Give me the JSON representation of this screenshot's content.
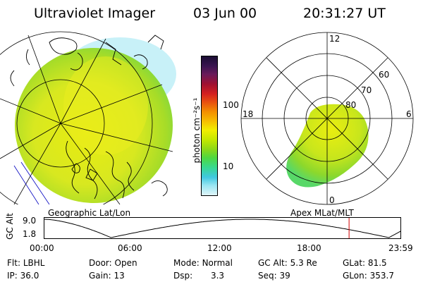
{
  "header": {
    "title": "Ultraviolet Imager",
    "date": "03 Jun 00",
    "time": "20:31:27 UT"
  },
  "colorbar": {
    "unit_label": "photon cm⁻²s⁻¹",
    "ticks": [
      "100",
      "10"
    ],
    "colors": [
      "#1a0d33",
      "#3a1450",
      "#6a1a5a",
      "#a01030",
      "#d42020",
      "#e85010",
      "#f39000",
      "#f6c000",
      "#f2ee00",
      "#c4e800",
      "#8cd818",
      "#4ed840",
      "#38d890",
      "#40c8e0",
      "#9ae6f2",
      "#e0f4f8"
    ]
  },
  "left_map": {
    "caption": "Geographic Lat/Lon"
  },
  "right_map": {
    "caption": "Apex MLat/MLT",
    "mlt_labels": {
      "top": "12",
      "left": "18",
      "right": "6",
      "bottom": "0"
    },
    "lat_labels": [
      "60",
      "70",
      "80"
    ]
  },
  "timeline": {
    "ylabel": "GC Alt",
    "ymax_label": "9.0",
    "ymin_label": "1.8",
    "x_ticks": [
      "00:00",
      "06:00",
      "12:00",
      "18:00",
      "23:59"
    ],
    "current_marker_hours": 20.52,
    "marker_color": "#d00000"
  },
  "footer": {
    "filter": {
      "label": "Flt:",
      "value": "LBHL"
    },
    "door": {
      "label": "Door:",
      "value": "Open"
    },
    "mode": {
      "label": "Mode:",
      "value": "Normal"
    },
    "gc_alt": {
      "label": "GC Alt:",
      "value": "5.3 Re"
    },
    "glat": {
      "label": "GLat:",
      "value": "81.5"
    },
    "ip": {
      "label": "IP:",
      "value": "36.0"
    },
    "gain": {
      "label": "Gain:",
      "value": "13"
    },
    "dsp": {
      "label": "Dsp:",
      "value": "3.3"
    },
    "seq": {
      "label": "Seq:",
      "value": "39"
    },
    "glon": {
      "label": "GLon:",
      "value": "353.7"
    }
  }
}
